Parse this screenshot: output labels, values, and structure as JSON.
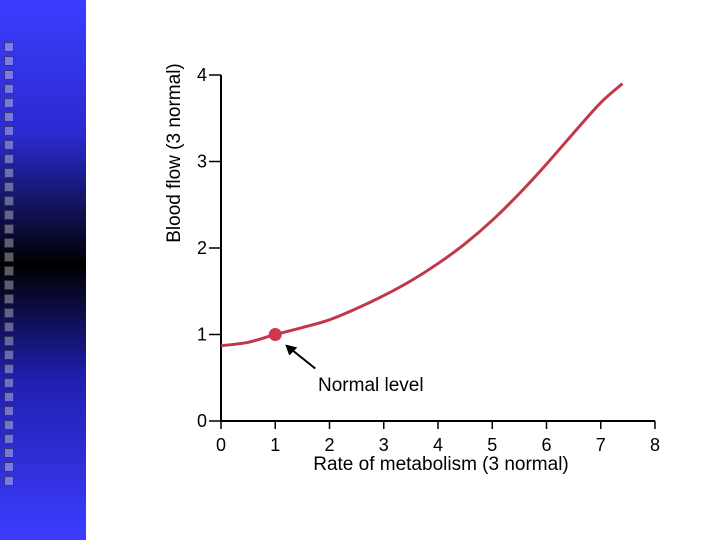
{
  "slide": {
    "sidebar_color_top": "#3d3dff",
    "sidebar_color_mid": "#000000"
  },
  "chart_data": {
    "type": "line",
    "title": "",
    "xlabel": "Rate of metabolism (3 normal)",
    "ylabel": "Blood flow (3 normal)",
    "xlim": [
      0,
      8
    ],
    "ylim": [
      0,
      4
    ],
    "xticks": [
      0,
      1,
      2,
      3,
      4,
      5,
      6,
      7,
      8
    ],
    "yticks": [
      0,
      1,
      2,
      3,
      4
    ],
    "grid": false,
    "series": [
      {
        "name": "Blood flow",
        "color": "#c0394b",
        "x": [
          0,
          0.5,
          1,
          1.5,
          2,
          2.5,
          3,
          3.5,
          4,
          4.5,
          5,
          5.5,
          6,
          6.5,
          7,
          7.4
        ],
        "y": [
          0.87,
          0.91,
          1.0,
          1.08,
          1.17,
          1.3,
          1.45,
          1.62,
          1.82,
          2.05,
          2.32,
          2.63,
          2.97,
          3.33,
          3.68,
          3.9
        ]
      }
    ],
    "highlight_point": {
      "x": 1,
      "y": 1,
      "color": "#d0374a"
    },
    "annotation": {
      "text": "Normal level",
      "points_to": [
        1,
        1
      ]
    }
  }
}
